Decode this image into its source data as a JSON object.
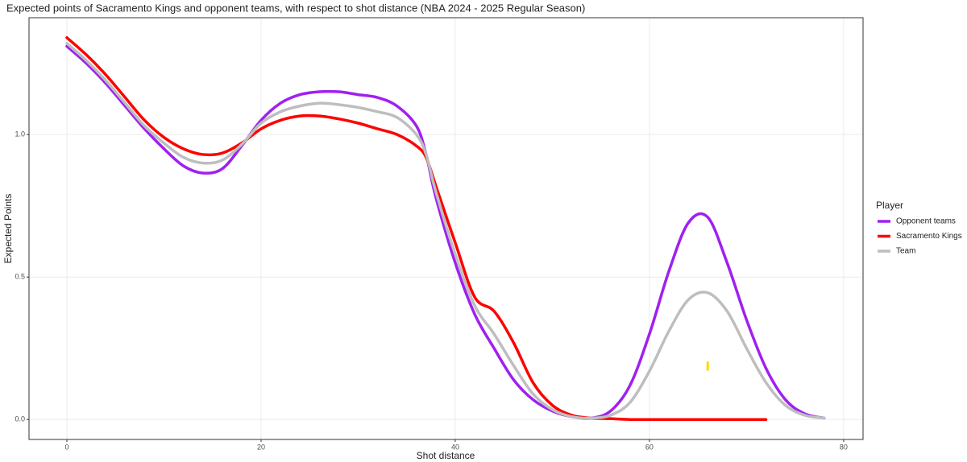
{
  "chart_data": {
    "type": "line",
    "title": "Expected points of Sacramento Kings and opponent teams, with respect to shot distance (NBA 2024 - 2025 Regular Season)",
    "x_label": "Shot distance",
    "y_label": "Expected Points",
    "legend_title": "Player",
    "legend": "right",
    "grid": true,
    "xlim": [
      -3.9,
      82
    ],
    "ylim": [
      -0.07,
      1.41
    ],
    "xticks": [
      0,
      20,
      40,
      60,
      80
    ],
    "yticks": [
      {
        "value": 0,
        "label": "0.0"
      },
      {
        "value": 0.5,
        "label": "0.5"
      },
      {
        "value": 1,
        "label": "1.0"
      }
    ],
    "x": [
      0,
      2,
      4,
      6,
      8,
      10,
      12,
      14,
      16,
      18,
      20,
      22,
      24,
      26,
      28,
      30,
      32,
      34,
      36,
      37,
      38,
      40,
      42,
      44,
      46,
      48,
      50,
      52,
      54,
      56,
      58,
      60,
      62,
      64,
      66,
      68,
      70,
      72,
      74,
      76,
      78
    ],
    "series": [
      {
        "name": "Opponent teams",
        "color": "#a020f0",
        "values": [
          1.31,
          1.25,
          1.18,
          1.1,
          1.02,
          0.95,
          0.89,
          0.865,
          0.88,
          0.96,
          1.05,
          1.11,
          1.14,
          1.15,
          1.15,
          1.14,
          1.13,
          1.1,
          1.03,
          0.93,
          0.78,
          0.55,
          0.37,
          0.25,
          0.14,
          0.07,
          0.03,
          0.01,
          0.005,
          0.03,
          0.12,
          0.3,
          0.52,
          0.69,
          0.71,
          0.55,
          0.35,
          0.18,
          0.07,
          0.02,
          0.005
        ]
      },
      {
        "name": "Sacramento Kings",
        "color": "#ff0000",
        "values": [
          1.34,
          1.28,
          1.21,
          1.13,
          1.05,
          0.99,
          0.95,
          0.93,
          0.935,
          0.97,
          1.02,
          1.05,
          1.065,
          1.065,
          1.055,
          1.04,
          1.02,
          1.0,
          0.96,
          0.92,
          0.82,
          0.62,
          0.43,
          0.38,
          0.27,
          0.13,
          0.05,
          0.015,
          0.005,
          0.003,
          0,
          0,
          0,
          0,
          0,
          0,
          0,
          0,
          null,
          null,
          null
        ]
      },
      {
        "name": "Team",
        "color": "#bebebe",
        "values": [
          1.32,
          1.26,
          1.19,
          1.11,
          1.03,
          0.97,
          0.92,
          0.9,
          0.91,
          0.965,
          1.04,
          1.08,
          1.1,
          1.11,
          1.105,
          1.095,
          1.08,
          1.06,
          1.0,
          0.93,
          0.8,
          0.58,
          0.4,
          0.3,
          0.19,
          0.09,
          0.035,
          0.01,
          0.005,
          0.015,
          0.06,
          0.17,
          0.31,
          0.42,
          0.445,
          0.38,
          0.25,
          0.13,
          0.05,
          0.015,
          0.005
        ]
      }
    ],
    "highlight": {
      "x": [
        66,
        66
      ],
      "values": [
        0.175,
        0.2
      ],
      "color": "#ffd700"
    }
  }
}
